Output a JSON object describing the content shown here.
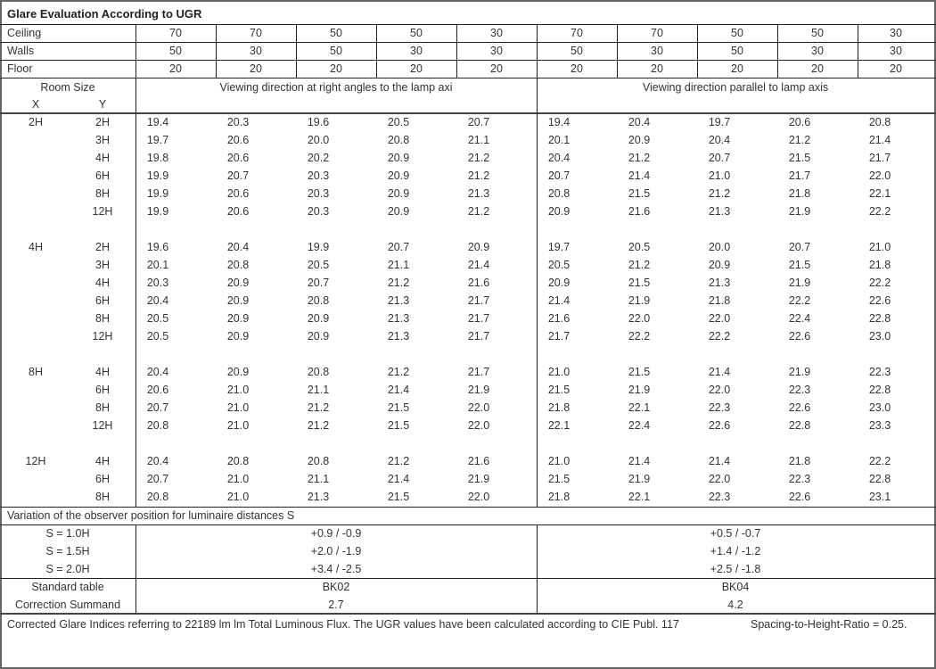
{
  "title": "Glare Evaluation According to UGR",
  "reflectances": [
    {
      "label": "Ceiling",
      "values": [
        "70",
        "70",
        "50",
        "50",
        "30",
        "70",
        "70",
        "50",
        "50",
        "30"
      ]
    },
    {
      "label": "Walls",
      "values": [
        "50",
        "30",
        "50",
        "30",
        "30",
        "50",
        "30",
        "50",
        "30",
        "30"
      ]
    },
    {
      "label": "Floor",
      "values": [
        "20",
        "20",
        "20",
        "20",
        "20",
        "20",
        "20",
        "20",
        "20",
        "20"
      ]
    }
  ],
  "header": {
    "room_size": "Room Size",
    "x": "X",
    "y": "Y",
    "perpendicular": "Viewing direction at right angles to the lamp axi",
    "parallel": "Viewing direction parallel to lamp axis"
  },
  "groups": [
    {
      "x": "2H",
      "rows": [
        {
          "y": "2H",
          "perp": [
            "19.4",
            "20.3",
            "19.6",
            "20.5",
            "20.7"
          ],
          "par": [
            "19.4",
            "20.4",
            "19.7",
            "20.6",
            "20.8"
          ]
        },
        {
          "y": "3H",
          "perp": [
            "19.7",
            "20.6",
            "20.0",
            "20.8",
            "21.1"
          ],
          "par": [
            "20.1",
            "20.9",
            "20.4",
            "21.2",
            "21.4"
          ]
        },
        {
          "y": "4H",
          "perp": [
            "19.8",
            "20.6",
            "20.2",
            "20.9",
            "21.2"
          ],
          "par": [
            "20.4",
            "21.2",
            "20.7",
            "21.5",
            "21.7"
          ]
        },
        {
          "y": "6H",
          "perp": [
            "19.9",
            "20.7",
            "20.3",
            "20.9",
            "21.2"
          ],
          "par": [
            "20.7",
            "21.4",
            "21.0",
            "21.7",
            "22.0"
          ]
        },
        {
          "y": "8H",
          "perp": [
            "19.9",
            "20.6",
            "20.3",
            "20.9",
            "21.3"
          ],
          "par": [
            "20.8",
            "21.5",
            "21.2",
            "21.8",
            "22.1"
          ]
        },
        {
          "y": "12H",
          "perp": [
            "19.9",
            "20.6",
            "20.3",
            "20.9",
            "21.2"
          ],
          "par": [
            "20.9",
            "21.6",
            "21.3",
            "21.9",
            "22.2"
          ]
        }
      ]
    },
    {
      "x": "4H",
      "rows": [
        {
          "y": "2H",
          "perp": [
            "19.6",
            "20.4",
            "19.9",
            "20.7",
            "20.9"
          ],
          "par": [
            "19.7",
            "20.5",
            "20.0",
            "20.7",
            "21.0"
          ]
        },
        {
          "y": "3H",
          "perp": [
            "20.1",
            "20.8",
            "20.5",
            "21.1",
            "21.4"
          ],
          "par": [
            "20.5",
            "21.2",
            "20.9",
            "21.5",
            "21.8"
          ]
        },
        {
          "y": "4H",
          "perp": [
            "20.3",
            "20.9",
            "20.7",
            "21.2",
            "21.6"
          ],
          "par": [
            "20.9",
            "21.5",
            "21.3",
            "21.9",
            "22.2"
          ]
        },
        {
          "y": "6H",
          "perp": [
            "20.4",
            "20.9",
            "20.8",
            "21.3",
            "21.7"
          ],
          "par": [
            "21.4",
            "21.9",
            "21.8",
            "22.2",
            "22.6"
          ]
        },
        {
          "y": "8H",
          "perp": [
            "20.5",
            "20.9",
            "20.9",
            "21.3",
            "21.7"
          ],
          "par": [
            "21.6",
            "22.0",
            "22.0",
            "22.4",
            "22.8"
          ]
        },
        {
          "y": "12H",
          "perp": [
            "20.5",
            "20.9",
            "20.9",
            "21.3",
            "21.7"
          ],
          "par": [
            "21.7",
            "22.2",
            "22.2",
            "22.6",
            "23.0"
          ]
        }
      ]
    },
    {
      "x": "8H",
      "rows": [
        {
          "y": "4H",
          "perp": [
            "20.4",
            "20.9",
            "20.8",
            "21.2",
            "21.7"
          ],
          "par": [
            "21.0",
            "21.5",
            "21.4",
            "21.9",
            "22.3"
          ]
        },
        {
          "y": "6H",
          "perp": [
            "20.6",
            "21.0",
            "21.1",
            "21.4",
            "21.9"
          ],
          "par": [
            "21.5",
            "21.9",
            "22.0",
            "22.3",
            "22.8"
          ]
        },
        {
          "y": "8H",
          "perp": [
            "20.7",
            "21.0",
            "21.2",
            "21.5",
            "22.0"
          ],
          "par": [
            "21.8",
            "22.1",
            "22.3",
            "22.6",
            "23.0"
          ]
        },
        {
          "y": "12H",
          "perp": [
            "20.8",
            "21.0",
            "21.2",
            "21.5",
            "22.0"
          ],
          "par": [
            "22.1",
            "22.4",
            "22.6",
            "22.8",
            "23.3"
          ]
        }
      ]
    },
    {
      "x": "12H",
      "rows": [
        {
          "y": "4H",
          "perp": [
            "20.4",
            "20.8",
            "20.8",
            "21.2",
            "21.6"
          ],
          "par": [
            "21.0",
            "21.4",
            "21.4",
            "21.8",
            "22.2"
          ]
        },
        {
          "y": "6H",
          "perp": [
            "20.7",
            "21.0",
            "21.1",
            "21.4",
            "21.9"
          ],
          "par": [
            "21.5",
            "21.9",
            "22.0",
            "22.3",
            "22.8"
          ]
        },
        {
          "y": "8H",
          "perp": [
            "20.8",
            "21.0",
            "21.3",
            "21.5",
            "22.0"
          ],
          "par": [
            "21.8",
            "22.1",
            "22.3",
            "22.6",
            "23.1"
          ]
        }
      ]
    }
  ],
  "variation": {
    "title": "Variation of the observer position for luminaire distances S",
    "rows": [
      {
        "label": "S = 1.0H",
        "perp": "+0.9 / -0.9",
        "par": "+0.5 / -0.7"
      },
      {
        "label": "S = 1.5H",
        "perp": "+2.0 / -1.9",
        "par": "+1.4 / -1.2"
      },
      {
        "label": "S = 2.0H",
        "perp": "+3.4 / -2.5",
        "par": "+2.5 / -1.8"
      }
    ]
  },
  "standard": {
    "label": "Standard table",
    "perp": "BK02",
    "par": "BK04"
  },
  "correction": {
    "label": "Correction Summand",
    "perp": "2.7",
    "par": "4.2"
  },
  "footer": {
    "note": "Corrected Glare Indices referring to 22189 lm lm Total Luminous Flux. The UGR values have been calculated according to CIE Publ. 117",
    "ratio": "Spacing-to-Height-Ratio = 0.25."
  }
}
